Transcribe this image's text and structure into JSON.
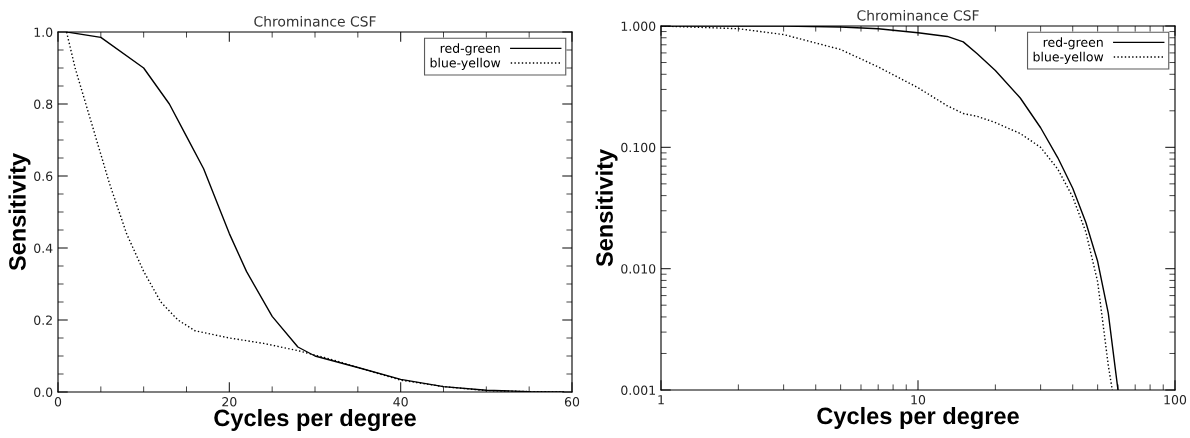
{
  "chart_data": [
    {
      "type": "line",
      "title": "Chrominance CSF",
      "xlabel": "Cycles per degree",
      "ylabel": "Sensitivity",
      "xlim": [
        0,
        60
      ],
      "ylim": [
        0,
        1
      ],
      "xticks": [
        0,
        20,
        40,
        60
      ],
      "yticks": [
        {
          "value": 0,
          "label": "0.0"
        },
        {
          "value": 0.2,
          "label": "0.2"
        },
        {
          "value": 0.4,
          "label": "0.4"
        },
        {
          "value": 0.6,
          "label": "0.6"
        },
        {
          "value": 0.8,
          "label": "0.8"
        },
        {
          "value": 1,
          "label": "1.0"
        }
      ],
      "legend": "top right",
      "grid": false,
      "series": [
        {
          "name": "red-green",
          "color": "#000000",
          "line_style": "solid",
          "x": [
            1,
            5,
            10,
            13,
            15,
            17,
            19,
            20,
            22,
            25,
            28,
            30,
            35,
            40,
            45,
            50,
            55,
            59
          ],
          "values": [
            1.0,
            0.985,
            0.9,
            0.8,
            0.71,
            0.62,
            0.5,
            0.44,
            0.335,
            0.21,
            0.125,
            0.1,
            0.068,
            0.035,
            0.015,
            0.005,
            0.001,
            0.0
          ]
        },
        {
          "name": "blue-yellow",
          "color": "#000000",
          "line_style": "dotted",
          "x": [
            1,
            2,
            4,
            6,
            8,
            10,
            12,
            14,
            16,
            18,
            20,
            24,
            28,
            32,
            35,
            40,
            45,
            50,
            55,
            59
          ],
          "values": [
            1.0,
            0.9,
            0.74,
            0.58,
            0.44,
            0.335,
            0.25,
            0.2,
            0.17,
            0.16,
            0.15,
            0.135,
            0.115,
            0.09,
            0.068,
            0.033,
            0.015,
            0.004,
            0.001,
            0.0
          ]
        }
      ]
    },
    {
      "type": "line",
      "title": "Chrominance CSF",
      "xlabel": "Cycles per degree",
      "ylabel": "Sensitivity",
      "log": "xy",
      "xlim": [
        1,
        100
      ],
      "ylim": [
        0.001,
        1
      ],
      "xticks": [
        1,
        10,
        100
      ],
      "yticks": [
        {
          "value": 0.001,
          "label": "0.001"
        },
        {
          "value": 0.01,
          "label": "0.010"
        },
        {
          "value": 0.1,
          "label": "0.100"
        },
        {
          "value": 1,
          "label": "1.000"
        }
      ],
      "legend": "top right",
      "grid": false,
      "series": [
        {
          "name": "red-green",
          "color": "#000000",
          "line_style": "solid",
          "x": [
            1,
            3,
            5,
            7,
            10,
            13,
            15,
            17,
            20,
            25,
            30,
            35,
            40,
            45,
            50,
            55,
            60
          ],
          "values": [
            1.0,
            1.0,
            0.98,
            0.95,
            0.88,
            0.82,
            0.74,
            0.59,
            0.43,
            0.255,
            0.145,
            0.082,
            0.046,
            0.024,
            0.0115,
            0.0043,
            0.001
          ]
        },
        {
          "name": "blue-yellow",
          "color": "#000000",
          "line_style": "dotted",
          "x": [
            1,
            2,
            3,
            5,
            7,
            10,
            13,
            15,
            17,
            20,
            25,
            30,
            35,
            40,
            45,
            50,
            55,
            57
          ],
          "values": [
            1.0,
            0.95,
            0.85,
            0.64,
            0.46,
            0.31,
            0.22,
            0.19,
            0.18,
            0.16,
            0.13,
            0.1,
            0.066,
            0.039,
            0.02,
            0.0078,
            0.0016,
            0.001
          ]
        }
      ]
    }
  ]
}
